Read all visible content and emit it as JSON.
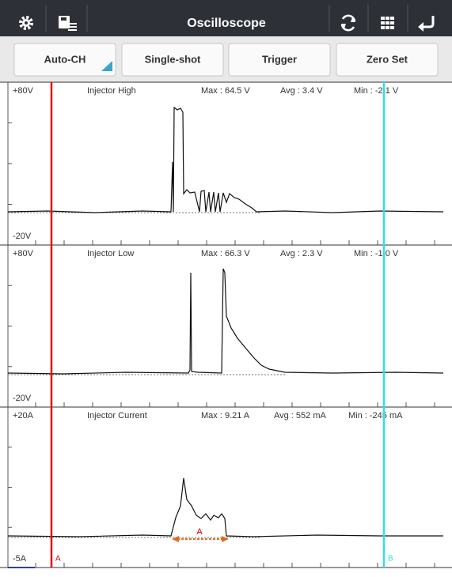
{
  "toolbar": {
    "title": "Oscilloscope"
  },
  "buttons": [
    "Auto-CH",
    "Single-shot",
    "Trigger",
    "Zero Set"
  ],
  "channels": [
    {
      "top": "+80V",
      "name": "Injector High",
      "max": "Max : 64.5 V",
      "avg": "Avg : 3.4 V",
      "min": "Min : -2.1 V",
      "bottom": "-20V"
    },
    {
      "top": "+80V",
      "name": "Injector Low",
      "max": "Max : 66.3 V",
      "avg": "Avg : 2.3 V",
      "min": "Min : -1.0 V",
      "bottom": "-20V"
    },
    {
      "top": "+20A",
      "name": "Injector Current",
      "max": "Max : 9.21 A",
      "avg": "Avg : 552 mA",
      "min": "Min : -245 mA",
      "bottom": "-5A"
    }
  ],
  "cursors": {
    "a": "A",
    "b": "B"
  },
  "measurement": "A"
}
